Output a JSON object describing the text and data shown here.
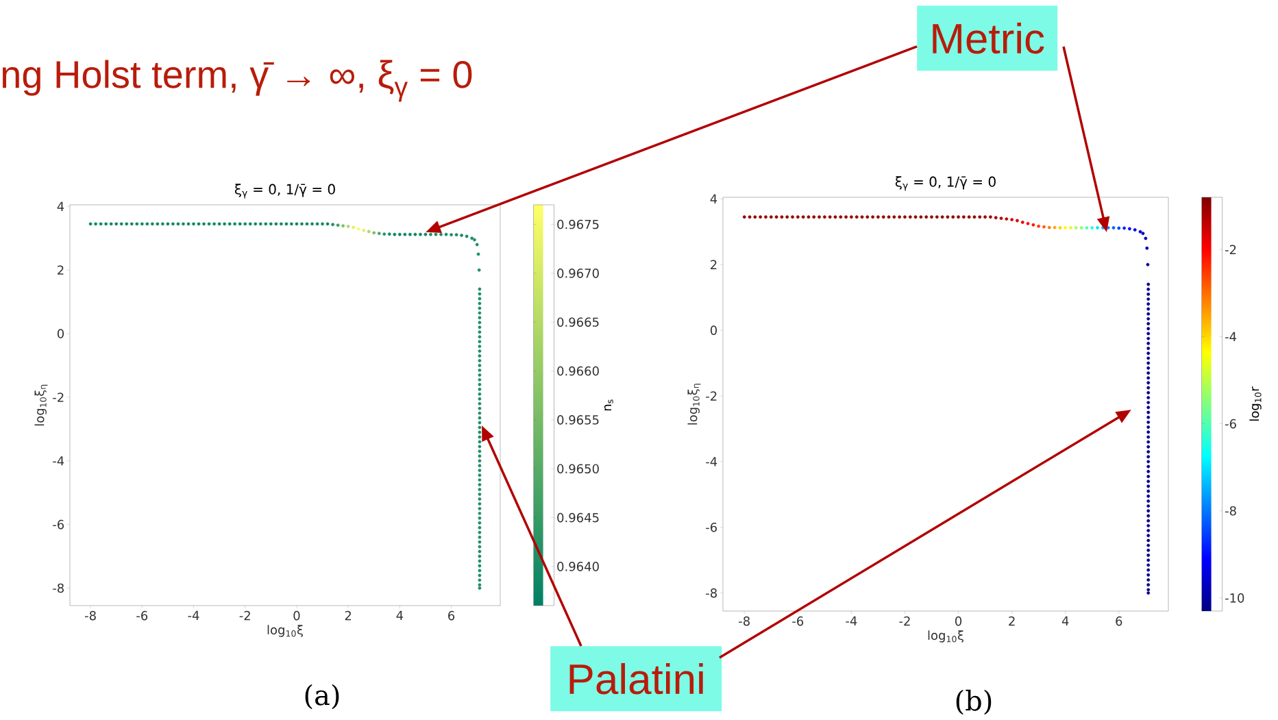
{
  "chart_data": [
    {
      "type": "scatter",
      "marker": "circle",
      "title": "ξ$_{γ}$ = 0,  1/γ̄ = 0",
      "xlabel": "log$_{10}$ξ",
      "ylabel": "log$_{10}$ξ$_{η}$",
      "clabel": "n$_{s}$",
      "annotations": [
        "ng Holst term,  γ̄ → ∞,  ξ$_{γ}$ = 0",
        "Metric",
        "Palatini",
        "(a)"
      ],
      "x": [
        -8,
        -7.8,
        -7.6,
        -7.4,
        -7.2,
        -7,
        -6.8,
        -6.6,
        -6.4,
        -6.2,
        -6,
        -5.8,
        -5.6,
        -5.4,
        -5.2,
        -5,
        -4.8,
        -4.6,
        -4.4,
        -4.2,
        -4,
        -3.8,
        -3.6,
        -3.4,
        -3.2,
        -3,
        -2.8,
        -2.6,
        -2.4,
        -2.2,
        -2,
        -1.8,
        -1.6,
        -1.4,
        -1.2,
        -1,
        -0.8,
        -0.6,
        -0.4,
        -0.2,
        0,
        0.2,
        0.4,
        0.6,
        0.8,
        1,
        1.2,
        1.4,
        1.6,
        1.8,
        2,
        2.2,
        2.4,
        2.6,
        2.8,
        3,
        3.2,
        3.4,
        3.6,
        3.8,
        4,
        4.2,
        4.4,
        4.6,
        4.8,
        5,
        5.2,
        5.4,
        5.6,
        5.8,
        6,
        6.2,
        6.4,
        6.6,
        6.8,
        6.9,
        7,
        7.05,
        7.08,
        7.1,
        7.1,
        7.1,
        7.1,
        7.1,
        7.1,
        7.1,
        7.1,
        7.1,
        7.1,
        7.1,
        7.1,
        7.1,
        7.1,
        7.1,
        7.1,
        7.1,
        7.1,
        7.1,
        7.1,
        7.1,
        7.1,
        7.1,
        7.1,
        7.1,
        7.1,
        7.1,
        7.1,
        7.1,
        7.1,
        7.1,
        7.1,
        7.1,
        7.1,
        7.1,
        7.1,
        7.1,
        7.1,
        7.1,
        7.1,
        7.1,
        7.1,
        7.1,
        7.1,
        7.1,
        7.1,
        7.1,
        7.1,
        7.1,
        7.1,
        7.1,
        7.1,
        7.1,
        7.1,
        7.1,
        7.1,
        7.1,
        7.1,
        7.1,
        7.1,
        7.1,
        7.1,
        7.1,
        7.1
      ],
      "values": [
        3.45,
        3.45,
        3.45,
        3.45,
        3.45,
        3.45,
        3.45,
        3.45,
        3.45,
        3.45,
        3.45,
        3.45,
        3.45,
        3.45,
        3.45,
        3.45,
        3.45,
        3.45,
        3.45,
        3.45,
        3.45,
        3.45,
        3.45,
        3.45,
        3.45,
        3.45,
        3.45,
        3.45,
        3.45,
        3.45,
        3.45,
        3.45,
        3.45,
        3.45,
        3.45,
        3.45,
        3.45,
        3.45,
        3.45,
        3.45,
        3.45,
        3.45,
        3.45,
        3.45,
        3.45,
        3.45,
        3.45,
        3.43,
        3.41,
        3.39,
        3.37,
        3.34,
        3.29,
        3.25,
        3.21,
        3.17,
        3.15,
        3.13,
        3.13,
        3.12,
        3.12,
        3.12,
        3.12,
        3.12,
        3.12,
        3.12,
        3.12,
        3.12,
        3.12,
        3.12,
        3.11,
        3.11,
        3.09,
        3.06,
        3.0,
        2.95,
        2.8,
        2.5,
        2.0,
        1.4,
        1.25,
        1.1,
        0.95,
        0.8,
        0.65,
        0.5,
        0.35,
        0.2,
        0.05,
        -0.1,
        -0.25,
        -0.4,
        -0.55,
        -0.7,
        -0.85,
        -1,
        -1.15,
        -1.3,
        -1.45,
        -1.6,
        -1.75,
        -1.9,
        -2.05,
        -2.2,
        -2.35,
        -2.5,
        -2.65,
        -2.8,
        -2.95,
        -3.1,
        -3.25,
        -3.4,
        -3.55,
        -3.7,
        -3.85,
        -4,
        -4.15,
        -4.3,
        -4.45,
        -4.6,
        -4.75,
        -4.9,
        -5.05,
        -5.2,
        -5.35,
        -5.5,
        -5.65,
        -5.8,
        -5.95,
        -6.1,
        -6.25,
        -6.4,
        -6.55,
        -6.7,
        -6.85,
        -7,
        -7.15,
        -7.3,
        -7.45,
        -7.6,
        -7.75,
        -7.9,
        -8
      ],
      "cvalues": [
        0.9638,
        0.9638,
        0.9638,
        0.9638,
        0.9638,
        0.9638,
        0.9638,
        0.9638,
        0.9638,
        0.9638,
        0.9638,
        0.9638,
        0.9638,
        0.9638,
        0.9638,
        0.9638,
        0.9638,
        0.9638,
        0.9638,
        0.9638,
        0.9638,
        0.9638,
        0.9638,
        0.9638,
        0.9638,
        0.9638,
        0.9638,
        0.9638,
        0.9638,
        0.9638,
        0.9638,
        0.9638,
        0.9638,
        0.9638,
        0.9638,
        0.9638,
        0.9638,
        0.9638,
        0.9638,
        0.9638,
        0.9638,
        0.9638,
        0.9638,
        0.9638,
        0.9638,
        0.9638,
        0.9638,
        0.9641,
        0.9646,
        0.9656,
        0.9665,
        0.9672,
        0.9676,
        0.9672,
        0.9664,
        0.9655,
        0.9648,
        0.9643,
        0.964,
        0.9638,
        0.9638,
        0.9638,
        0.9638,
        0.9638,
        0.9638,
        0.9638,
        0.964,
        0.964,
        0.964,
        0.964,
        0.964,
        0.964,
        0.964,
        0.964,
        0.9641,
        0.9641,
        0.9641,
        0.9641,
        0.9641,
        0.9641,
        0.9641,
        0.9641,
        0.9641,
        0.9641,
        0.9641,
        0.9641,
        0.9641,
        0.9641,
        0.9641,
        0.9641,
        0.9641,
        0.9641,
        0.9641,
        0.9641,
        0.9641,
        0.9641,
        0.9641,
        0.9641,
        0.9641,
        0.9641,
        0.9641,
        0.9641,
        0.9641,
        0.9641,
        0.9641,
        0.9641,
        0.9641,
        0.9641,
        0.9641,
        0.9641,
        0.9641,
        0.9641,
        0.9641,
        0.9641,
        0.9641,
        0.9641,
        0.9641,
        0.9641,
        0.9641,
        0.9641,
        0.9641,
        0.9641,
        0.9641,
        0.9641,
        0.9641,
        0.9641,
        0.9641,
        0.9641,
        0.9641,
        0.9641,
        0.9641,
        0.9641,
        0.9641,
        0.9641,
        0.9641,
        0.9641,
        0.9641,
        0.9641,
        0.9641,
        0.9641,
        0.9641,
        0.9641,
        0.9641
      ],
      "xlim": [
        -8.8,
        7.9
      ],
      "ylim": [
        -8.55,
        4.05
      ],
      "xticks": [
        -8,
        -6,
        -4,
        -2,
        0,
        2,
        4,
        6
      ],
      "yticks": [
        -8,
        -6,
        -4,
        -2,
        0,
        2,
        4
      ],
      "clim": [
        0.9636,
        0.9677
      ],
      "cticks": [
        {
          "value": 0.964,
          "label": "0.9640"
        },
        0.9645,
        {
          "value": 0.965,
          "label": "0.9650"
        },
        0.9655,
        {
          "value": 0.966,
          "label": "0.9660"
        },
        0.9665,
        {
          "value": 0.967,
          "label": "0.9670"
        },
        0.9675
      ]
    },
    {
      "type": "scatter",
      "marker": "circle",
      "title": "ξ$_{γ}$ = 0,  1/γ̄ = 0",
      "xlabel": "log$_{10}$ξ",
      "ylabel": "log$_{10}$ξ$_{η}$",
      "clabel": "log$_{10}$r",
      "annotations": [
        "(b)"
      ],
      "x": [
        -8,
        -7.8,
        -7.6,
        -7.4,
        -7.2,
        -7,
        -6.8,
        -6.6,
        -6.4,
        -6.2,
        -6,
        -5.8,
        -5.6,
        -5.4,
        -5.2,
        -5,
        -4.8,
        -4.6,
        -4.4,
        -4.2,
        -4,
        -3.8,
        -3.6,
        -3.4,
        -3.2,
        -3,
        -2.8,
        -2.6,
        -2.4,
        -2.2,
        -2,
        -1.8,
        -1.6,
        -1.4,
        -1.2,
        -1,
        -0.8,
        -0.6,
        -0.4,
        -0.2,
        0,
        0.2,
        0.4,
        0.6,
        0.8,
        1,
        1.2,
        1.4,
        1.6,
        1.8,
        2,
        2.2,
        2.4,
        2.6,
        2.8,
        3,
        3.2,
        3.4,
        3.6,
        3.8,
        4,
        4.2,
        4.4,
        4.6,
        4.8,
        5,
        5.2,
        5.4,
        5.6,
        5.8,
        6,
        6.2,
        6.4,
        6.6,
        6.8,
        6.9,
        7,
        7.05,
        7.08,
        7.1,
        7.1,
        7.1,
        7.1,
        7.1,
        7.1,
        7.1,
        7.1,
        7.1,
        7.1,
        7.1,
        7.1,
        7.1,
        7.1,
        7.1,
        7.1,
        7.1,
        7.1,
        7.1,
        7.1,
        7.1,
        7.1,
        7.1,
        7.1,
        7.1,
        7.1,
        7.1,
        7.1,
        7.1,
        7.1,
        7.1,
        7.1,
        7.1,
        7.1,
        7.1,
        7.1,
        7.1,
        7.1,
        7.1,
        7.1,
        7.1,
        7.1,
        7.1,
        7.1,
        7.1,
        7.1,
        7.1,
        7.1,
        7.1,
        7.1,
        7.1,
        7.1,
        7.1,
        7.1,
        7.1,
        7.1,
        7.1,
        7.1,
        7.1,
        7.1,
        7.1,
        7.1,
        7.1,
        7.1
      ],
      "values": [
        3.45,
        3.45,
        3.45,
        3.45,
        3.45,
        3.45,
        3.45,
        3.45,
        3.45,
        3.45,
        3.45,
        3.45,
        3.45,
        3.45,
        3.45,
        3.45,
        3.45,
        3.45,
        3.45,
        3.45,
        3.45,
        3.45,
        3.45,
        3.45,
        3.45,
        3.45,
        3.45,
        3.45,
        3.45,
        3.45,
        3.45,
        3.45,
        3.45,
        3.45,
        3.45,
        3.45,
        3.45,
        3.45,
        3.45,
        3.45,
        3.45,
        3.45,
        3.45,
        3.45,
        3.45,
        3.45,
        3.45,
        3.43,
        3.41,
        3.39,
        3.37,
        3.34,
        3.29,
        3.25,
        3.21,
        3.17,
        3.15,
        3.13,
        3.13,
        3.12,
        3.12,
        3.12,
        3.12,
        3.12,
        3.12,
        3.12,
        3.12,
        3.12,
        3.12,
        3.12,
        3.11,
        3.11,
        3.09,
        3.06,
        3.0,
        2.95,
        2.8,
        2.5,
        2.0,
        1.4,
        1.25,
        1.1,
        0.95,
        0.8,
        0.65,
        0.5,
        0.35,
        0.2,
        0.05,
        -0.1,
        -0.25,
        -0.4,
        -0.55,
        -0.7,
        -0.85,
        -1,
        -1.15,
        -1.3,
        -1.45,
        -1.6,
        -1.75,
        -1.9,
        -2.05,
        -2.2,
        -2.35,
        -2.5,
        -2.65,
        -2.8,
        -2.95,
        -3.1,
        -3.25,
        -3.4,
        -3.55,
        -3.7,
        -3.85,
        -4,
        -4.15,
        -4.3,
        -4.45,
        -4.6,
        -4.75,
        -4.9,
        -5.05,
        -5.2,
        -5.35,
        -5.5,
        -5.65,
        -5.8,
        -5.95,
        -6.1,
        -6.25,
        -6.4,
        -6.55,
        -6.7,
        -6.85,
        -7,
        -7.15,
        -7.3,
        -7.45,
        -7.6,
        -7.75,
        -7.9,
        -8
      ],
      "cvalues": [
        -1,
        -1,
        -1,
        -1,
        -1,
        -1,
        -1,
        -1,
        -1,
        -1,
        -1,
        -1,
        -1,
        -1,
        -1,
        -1,
        -1,
        -1,
        -1,
        -1,
        -1,
        -1,
        -1,
        -1,
        -1,
        -1,
        -1,
        -1,
        -1,
        -1,
        -1,
        -1,
        -1,
        -1,
        -1,
        -1,
        -1,
        -1,
        -1,
        -1,
        -1,
        -1,
        -1,
        -1,
        -1,
        -1.05,
        -1.1,
        -1.15,
        -1.25,
        -1.35,
        -1.45,
        -1.6,
        -1.75,
        -1.95,
        -2.2,
        -2.5,
        -2.8,
        -3.1,
        -3.5,
        -3.9,
        -4.3,
        -4.7,
        -5.1,
        -5.5,
        -6,
        -6.5,
        -7,
        -7.4,
        -7.8,
        -8.2,
        -8.5,
        -8.8,
        -9.1,
        -9.3,
        -9.5,
        -9.7,
        -9.8,
        -9.9,
        -10,
        -10.2,
        -10.2,
        -10.2,
        -10.2,
        -10.2,
        -10.2,
        -10.2,
        -10.2,
        -10.2,
        -10.2,
        -10.2,
        -10.2,
        -10.2,
        -10.2,
        -10.2,
        -10.2,
        -10.2,
        -10.2,
        -10.2,
        -10.2,
        -10.2,
        -10.2,
        -10.2,
        -10.2,
        -10.2,
        -10.2,
        -10.2,
        -10.2,
        -10.2,
        -10.2,
        -10.2,
        -10.2,
        -10.2,
        -10.2,
        -10.2,
        -10.2,
        -10.2,
        -10.2,
        -10.2,
        -10.2,
        -10.2,
        -10.2,
        -10.2,
        -10.2,
        -10.2,
        -10.2,
        -10.2,
        -10.2,
        -10.2,
        -10.2,
        -10.2,
        -10.2,
        -10.2,
        -10.2,
        -10.2,
        -10.2,
        -10.2,
        -10.2,
        -10.2,
        -10.2,
        -10.2,
        -10.2,
        -10.2,
        -10.2
      ],
      "xlim": [
        -8.8,
        7.85
      ],
      "ylim": [
        -8.55,
        4.05
      ],
      "xticks": [
        -8,
        -6,
        -4,
        -2,
        0,
        2,
        4,
        6
      ],
      "yticks": [
        -8,
        -6,
        -4,
        -2,
        0,
        2,
        4
      ],
      "clim": [
        -10.3,
        -0.8
      ],
      "cticks": [
        -10,
        -8,
        -6,
        -4,
        -2
      ]
    }
  ]
}
